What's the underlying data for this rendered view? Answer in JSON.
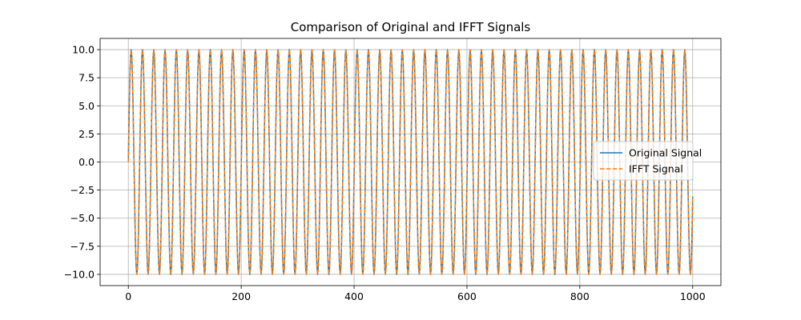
{
  "chart_data": {
    "type": "line",
    "title": "Comparison of Original and IFFT Signals",
    "xlabel": "",
    "ylabel": "",
    "xlim": [
      -50,
      1050
    ],
    "ylim": [
      -11,
      11
    ],
    "x_ticks": [
      0,
      200,
      400,
      600,
      800,
      1000
    ],
    "x_tick_labels": [
      "0",
      "200",
      "400",
      "600",
      "800",
      "1000"
    ],
    "y_ticks": [
      10.0,
      7.5,
      5.0,
      2.5,
      0.0,
      -2.5,
      -5.0,
      -7.5,
      -10.0
    ],
    "y_tick_labels": [
      "10.0",
      "7.5",
      "5.0",
      "2.5",
      "0.0",
      "−2.5",
      "−5.0",
      "−7.5",
      "−10.0"
    ],
    "grid": true,
    "legend_position": "center-right",
    "signal": {
      "function": "sine",
      "amplitude": 10,
      "cycles": 50,
      "x_start": 0,
      "x_end": 1000,
      "num_points": 1000
    },
    "series": [
      {
        "name": "Original Signal",
        "color": "#1f77b4",
        "style": "solid"
      },
      {
        "name": "IFFT Signal",
        "color": "#ff7f0e",
        "style": "dashed"
      }
    ]
  }
}
